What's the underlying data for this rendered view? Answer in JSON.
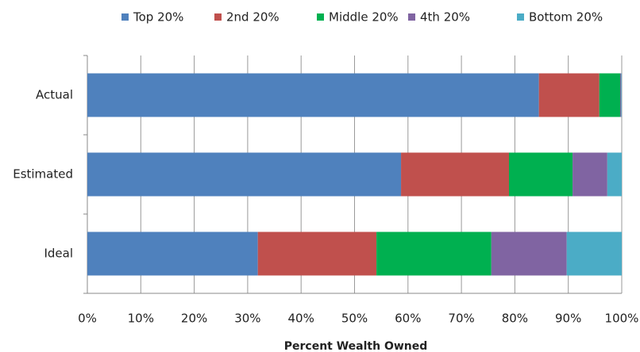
{
  "chart_data": {
    "type": "stacked-bar-horizontal",
    "x_label": "Percent Wealth Owned",
    "categories": [
      "Actual",
      "Estimated",
      "Ideal"
    ],
    "series": [
      {
        "name": "Top 20%",
        "color": "#4f81bd",
        "values": [
          84.5,
          58.7,
          31.9
        ]
      },
      {
        "name": "2nd 20%",
        "color": "#c0504d",
        "values": [
          11.3,
          20.2,
          22.2
        ]
      },
      {
        "name": "Middle 20%",
        "color": "#00b050",
        "values": [
          3.9,
          11.9,
          21.5
        ]
      },
      {
        "name": "4th 20%",
        "color": "#8064a2",
        "values": [
          0.2,
          6.5,
          14.1
        ]
      },
      {
        "name": "Bottom 20%",
        "color": "#4bacc6",
        "values": [
          0.1,
          2.7,
          10.3
        ]
      }
    ],
    "xlim": [
      0,
      100
    ],
    "xticks": [
      {
        "value": 0,
        "label": "0%"
      },
      {
        "value": 10,
        "label": "10%"
      },
      {
        "value": 20,
        "label": "20%"
      },
      {
        "value": 30,
        "label": "30%"
      },
      {
        "value": 40,
        "label": "40%"
      },
      {
        "value": 50,
        "label": "50%"
      },
      {
        "value": 60,
        "label": "60%"
      },
      {
        "value": 70,
        "label": "70%"
      },
      {
        "value": 80,
        "label": "80%"
      },
      {
        "value": 90,
        "label": "90%"
      },
      {
        "value": 100,
        "label": "100%"
      }
    ],
    "grid": true,
    "legend": "top"
  }
}
